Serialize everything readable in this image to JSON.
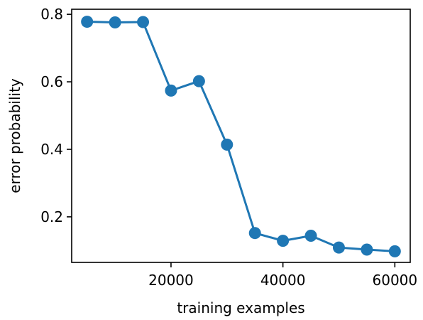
{
  "chart_data": {
    "type": "line",
    "title": "",
    "xlabel": "training examples",
    "ylabel": "error probability",
    "xlim": [
      2250,
      62750
    ],
    "ylim": [
      0.065,
      0.815
    ],
    "x_ticks": [
      {
        "value": 20000,
        "label": "20000"
      },
      {
        "value": 40000,
        "label": "40000"
      },
      {
        "value": 60000,
        "label": "60000"
      }
    ],
    "y_ticks": [
      {
        "value": 0.2,
        "label": "0.2"
      },
      {
        "value": 0.4,
        "label": "0.4"
      },
      {
        "value": 0.6,
        "label": "0.6"
      },
      {
        "value": 0.8,
        "label": "0.8"
      }
    ],
    "grid": false,
    "color": "#1f77b4",
    "series": [
      {
        "x": [
          5000,
          10000,
          15000,
          20000,
          25000,
          30000,
          35000,
          40000,
          45000,
          50000,
          55000,
          60000
        ],
        "y": [
          0.778,
          0.776,
          0.777,
          0.574,
          0.602,
          0.414,
          0.152,
          0.129,
          0.144,
          0.109,
          0.103,
          0.098
        ]
      }
    ]
  }
}
